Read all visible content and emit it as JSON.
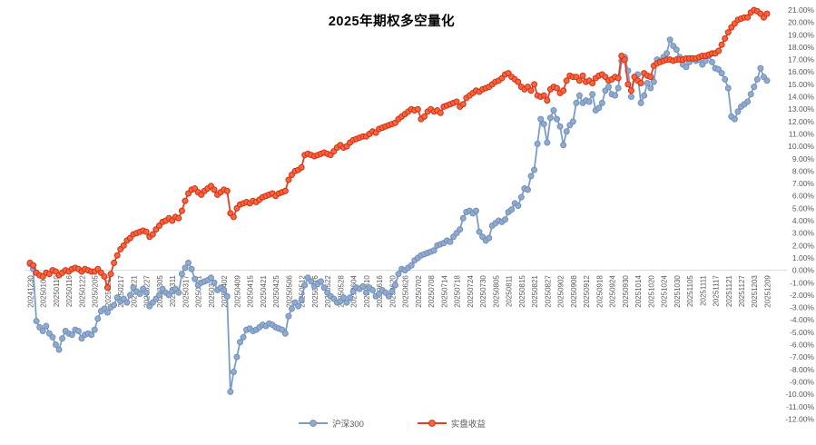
{
  "page": {
    "background": "#FFFFFF"
  },
  "chart_data": {
    "type": "line",
    "title": "2025年期权多空量化",
    "legend_position": "bottom",
    "grid": "zero-line-only",
    "zero_line_color": "#D9D9D9",
    "axis_text_color": "#595959",
    "ylim": [
      -12,
      21
    ],
    "y_tick_labels": [
      "21.00%",
      "20.00%",
      "19.00%",
      "18.00%",
      "17.00%",
      "16.00%",
      "15.00%",
      "14.00%",
      "13.00%",
      "12.00%",
      "11.00%",
      "10.00%",
      "9.00%",
      "8.00%",
      "7.00%",
      "6.00%",
      "5.00%",
      "4.00%",
      "3.00%",
      "2.00%",
      "1.00%",
      "0.00%",
      "-1.00%",
      "-2.00%",
      "-3.00%",
      "-4.00%",
      "-5.00%",
      "-6.00%",
      "-7.00%",
      "-8.00%",
      "-9.00%",
      "-10.00%",
      "-11.00%",
      "-12.00%"
    ],
    "x_points_per_tick": 4,
    "x_tick_labels": [
      "20241230",
      "20250106",
      "20250110",
      "20250116",
      "20250122",
      "20250205",
      "20250211",
      "20250217",
      "20250221",
      "20250227",
      "20250305",
      "20250311",
      "20250317",
      "20250321",
      "20250327",
      "20250402",
      "20250409",
      "20250415",
      "20250421",
      "20250425",
      "20250506",
      "20250512",
      "20250516",
      "20250522",
      "20250528",
      "20250604",
      "20250610",
      "20250616",
      "20250620",
      "20250626",
      "20250702",
      "20250708",
      "20250714",
      "20250718",
      "20250724",
      "20250730",
      "20250805",
      "20250811",
      "20250815",
      "20250821",
      "20250827",
      "20250902",
      "20250908",
      "20250912",
      "20250918",
      "20250924",
      "20250930",
      "20251014",
      "20251020",
      "20251024",
      "20251030",
      "20251105",
      "20251111",
      "20251117",
      "20251121",
      "20251127",
      "20251203",
      "20251209"
    ],
    "series": [
      {
        "name": "沪深300",
        "color": "#7D9DC8",
        "marker_fill": "#92ABCC",
        "marker_edge": "#6E90BC",
        "values": [
          0.5,
          0.1,
          -4.1,
          -4.6,
          -4.9,
          -4.5,
          -5.1,
          -5.4,
          -6.0,
          -6.4,
          -5.5,
          -4.9,
          -5.1,
          -5.2,
          -4.8,
          -4.9,
          -5.5,
          -5.2,
          -5.1,
          -5.2,
          -4.8,
          -3.9,
          -3.3,
          -3.1,
          -3.4,
          -3.0,
          -2.8,
          -2.2,
          -2.5,
          -2.3,
          -2.6,
          -2.0,
          -1.4,
          -1.7,
          -1.9,
          -1.5,
          -1.8,
          -2.9,
          -2.6,
          -2.3,
          -2.0,
          -1.5,
          -1.8,
          -2.0,
          -1.7,
          -1.5,
          -1.8,
          -0.3,
          0.2,
          0.6,
          0.1,
          -0.7,
          -1.2,
          -1.0,
          -0.9,
          -0.8,
          -0.6,
          -1.0,
          -1.6,
          -1.4,
          -1.6,
          -2.1,
          -9.8,
          -8.2,
          -7.0,
          -5.8,
          -5.4,
          -4.8,
          -4.7,
          -4.9,
          -4.8,
          -4.6,
          -4.4,
          -4.5,
          -4.3,
          -4.4,
          -4.6,
          -4.7,
          -4.8,
          -5.1,
          -3.7,
          -3.1,
          -2.6,
          -2.9,
          -2.4,
          -1.2,
          -0.6,
          -0.9,
          -1.3,
          -1.1,
          -0.9,
          -1.4,
          -1.8,
          -2.1,
          -2.3,
          -2.6,
          -2.5,
          -2.2,
          -2.6,
          -2.2,
          -1.7,
          -1.4,
          -1.5,
          -1.3,
          -1.8,
          -1.4,
          -1.6,
          -2.1,
          -1.9,
          -1.6,
          -1.8,
          -2.1,
          -1.7,
          -1.2,
          -0.3,
          0.1,
          0.0,
          0.2,
          0.4,
          0.8,
          1.0,
          1.2,
          1.3,
          1.4,
          1.5,
          1.6,
          2.0,
          2.1,
          2.2,
          2.4,
          2.3,
          2.7,
          3.0,
          3.3,
          4.2,
          4.7,
          4.8,
          4.6,
          4.8,
          3.1,
          2.7,
          2.4,
          2.6,
          3.6,
          3.8,
          4.0,
          3.9,
          4.1,
          4.7,
          4.9,
          5.4,
          5.2,
          5.9,
          6.6,
          6.5,
          7.6,
          8.1,
          10.2,
          12.2,
          11.8,
          10.3,
          12.3,
          12.9,
          12.2,
          11.6,
          10.1,
          11.2,
          11.7,
          12.0,
          13.5,
          14.1,
          13.5,
          13.7,
          13.6,
          14.2,
          12.9,
          13.1,
          13.5,
          14.5,
          14.8,
          14.2,
          14.1,
          14.7,
          16.9,
          17.2,
          16.1,
          14.0,
          15.6,
          15.8,
          13.5,
          14.1,
          15.1,
          14.7,
          15.2,
          17.0,
          16.9,
          17.2,
          17.5,
          18.6,
          18.1,
          17.8,
          17.2,
          16.6,
          16.4,
          16.8,
          17.1,
          16.9,
          17.0,
          16.6,
          16.9,
          17.3,
          16.8,
          16.3,
          16.2,
          15.9,
          15.4,
          14.7,
          12.4,
          12.2,
          12.8,
          13.2,
          13.4,
          13.6,
          14.2,
          14.8,
          15.4,
          16.3,
          15.6,
          15.3
        ]
      },
      {
        "name": "实盘收益",
        "color": "#EA3B24",
        "marker_fill": "#F2683C",
        "marker_edge": "#D92C15",
        "values": [
          0.6,
          0.4,
          -0.2,
          -0.4,
          -0.5,
          -0.2,
          -0.3,
          0.0,
          -0.1,
          -0.4,
          -0.2,
          0.0,
          -0.1,
          0.1,
          0.2,
          0.1,
          -0.1,
          0.1,
          0.0,
          -0.1,
          -0.1,
          0.1,
          -0.2,
          -0.5,
          -1.4,
          -0.3,
          0.6,
          1.2,
          1.7,
          2.0,
          2.4,
          2.6,
          2.9,
          3.0,
          3.1,
          3.2,
          3.1,
          2.7,
          2.9,
          3.3,
          3.6,
          3.9,
          4.0,
          4.2,
          4.0,
          4.3,
          4.2,
          4.8,
          5.6,
          6.2,
          6.5,
          6.6,
          6.3,
          6.1,
          6.4,
          6.6,
          6.8,
          6.5,
          6.1,
          6.3,
          6.5,
          6.4,
          4.6,
          4.3,
          5.0,
          5.3,
          5.4,
          5.5,
          5.4,
          5.6,
          5.5,
          5.7,
          5.9,
          6.0,
          6.1,
          6.2,
          6.0,
          6.2,
          6.3,
          6.4,
          7.3,
          7.7,
          8.0,
          8.1,
          8.3,
          9.3,
          9.4,
          9.3,
          9.2,
          9.3,
          9.4,
          9.5,
          9.4,
          9.3,
          9.6,
          9.9,
          10.1,
          9.9,
          10.0,
          10.3,
          10.5,
          10.6,
          10.7,
          10.8,
          10.8,
          11.0,
          11.2,
          11.1,
          11.4,
          11.5,
          11.6,
          11.7,
          11.8,
          11.9,
          12.2,
          12.4,
          12.6,
          12.8,
          13.0,
          12.9,
          13.0,
          12.2,
          12.4,
          12.8,
          13.0,
          12.8,
          12.9,
          12.7,
          13.2,
          13.3,
          13.4,
          13.5,
          13.6,
          13.2,
          13.4,
          13.9,
          14.1,
          14.3,
          14.5,
          14.4,
          14.6,
          14.7,
          14.8,
          15.0,
          15.2,
          15.3,
          15.5,
          15.8,
          15.9,
          15.6,
          15.4,
          15.2,
          14.8,
          14.6,
          14.8,
          14.5,
          15.0,
          14.1,
          14.0,
          14.1,
          13.7,
          14.6,
          14.8,
          14.7,
          14.3,
          14.5,
          15.3,
          15.7,
          15.6,
          15.6,
          15.3,
          15.7,
          15.2,
          15.3,
          15.1,
          15.5,
          15.7,
          15.8,
          15.6,
          15.3,
          15.4,
          15.6,
          15.5,
          17.3,
          17.0,
          15.0,
          14.5,
          15.6,
          15.3,
          15.1,
          15.9,
          15.7,
          15.6,
          16.5,
          16.7,
          16.8,
          16.9,
          17.0,
          17.0,
          16.9,
          17.0,
          17.0,
          17.0,
          17.1,
          17.1,
          17.1,
          17.1,
          17.2,
          17.3,
          17.3,
          17.4,
          17.5,
          17.5,
          17.7,
          18.2,
          18.7,
          19.2,
          19.6,
          19.9,
          20.2,
          20.3,
          20.4,
          20.4,
          20.8,
          21.0,
          20.9,
          20.7,
          20.4,
          20.7
        ]
      }
    ]
  }
}
